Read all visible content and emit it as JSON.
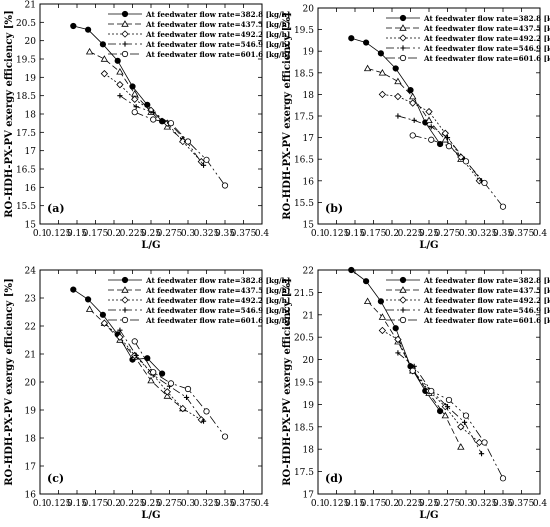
{
  "chart_data": [
    {
      "type": "line",
      "panel_label": "(a)",
      "xlabel": "L/G",
      "ylabel": "RO-HDH-PX-PV exergy efficiency [%]",
      "xlim": [
        0.1,
        0.4
      ],
      "ylim": [
        15,
        21
      ],
      "xticks": [
        "0.1",
        "0.125",
        "0.15",
        "0.175",
        "0.2",
        "0.225",
        "0.25",
        "0.275",
        "0.3",
        "0.325",
        "0.35",
        "0.375",
        "0.4"
      ],
      "yticks": [
        "15",
        "15.5",
        "16",
        "16.5",
        "17",
        "17.5",
        "18",
        "18.5",
        "19",
        "19.5",
        "20",
        "20.5",
        "21"
      ],
      "legend_position": "top-right",
      "series": [
        {
          "name": "At feedwater flow rate=382.8 [kg/h]",
          "marker": "filled-circle",
          "dash": "solid",
          "x": [
            0.145,
            0.165,
            0.185,
            0.205,
            0.225,
            0.245,
            0.265
          ],
          "y": [
            20.4,
            20.3,
            19.9,
            19.45,
            18.75,
            18.25,
            17.8
          ]
        },
        {
          "name": "At feedwater flow rate=437.5 [kg/h]",
          "marker": "open-triangle",
          "dash": "6,3",
          "x": [
            0.167,
            0.187,
            0.208,
            0.228,
            0.25,
            0.272,
            0.293
          ],
          "y": [
            19.7,
            19.5,
            19.15,
            18.55,
            18.05,
            17.65,
            17.3
          ]
        },
        {
          "name": "At feedwater flow rate=492.2 [kg/h]",
          "marker": "open-diamond",
          "dash": "2,2",
          "x": [
            0.187,
            0.208,
            0.228,
            0.25,
            0.272,
            0.293,
            0.318
          ],
          "y": [
            19.1,
            18.8,
            18.4,
            18.1,
            17.75,
            17.25,
            16.7
          ]
        },
        {
          "name": "At feedwater flow rate=546.9 [kg/h]",
          "marker": "plus",
          "dash": "8,3,2,3",
          "x": [
            0.208,
            0.23,
            0.253,
            0.275,
            0.298,
            0.321
          ],
          "y": [
            18.5,
            18.2,
            18.05,
            17.75,
            17.25,
            16.6
          ]
        },
        {
          "name": "At feedwater flow rate=601.6 [kg/h]",
          "marker": "open-circle",
          "dash": "9,3,2,3,2,3",
          "x": [
            0.228,
            0.253,
            0.277,
            0.3,
            0.325,
            0.35
          ],
          "y": [
            18.05,
            17.85,
            17.75,
            17.25,
            16.75,
            16.05
          ]
        }
      ]
    },
    {
      "type": "line",
      "panel_label": "(b)",
      "xlabel": "L/G",
      "ylabel": "RO-HDH-PX-PV exergy efficiency [%]",
      "xlim": [
        0.1,
        0.4
      ],
      "ylim": [
        15,
        20
      ],
      "xticks": [
        "0.1",
        "0.125",
        "0.15",
        "0.175",
        "0.2",
        "0.225",
        "0.25",
        "0.275",
        "0.3",
        "0.325",
        "0.35",
        "0.375",
        "0.4"
      ],
      "yticks": [
        "15",
        "15.5",
        "16",
        "16.5",
        "17",
        "17.5",
        "18",
        "18.5",
        "19",
        "19.5",
        "20"
      ],
      "legend_position": "top-right",
      "series": [
        {
          "name": "At feedwater flow rate=382.8 [kg/h]",
          "marker": "filled-circle",
          "dash": "solid",
          "x": [
            0.145,
            0.165,
            0.185,
            0.205,
            0.225,
            0.245,
            0.265
          ],
          "y": [
            19.3,
            19.2,
            18.95,
            18.6,
            18.1,
            17.35,
            16.85
          ]
        },
        {
          "name": "At feedwater flow rate=437.5 [kg/h]",
          "marker": "open-triangle",
          "dash": "6,3",
          "x": [
            0.167,
            0.187,
            0.208,
            0.228,
            0.25,
            0.272,
            0.293
          ],
          "y": [
            18.6,
            18.5,
            18.3,
            17.95,
            17.4,
            16.95,
            16.5
          ]
        },
        {
          "name": "At feedwater flow rate=492.2 [kg/h]",
          "marker": "open-diamond",
          "dash": "2,2",
          "x": [
            0.187,
            0.208,
            0.228,
            0.25,
            0.272,
            0.293,
            0.318
          ],
          "y": [
            18.0,
            17.95,
            17.8,
            17.6,
            17.1,
            16.55,
            16.0
          ]
        },
        {
          "name": "At feedwater flow rate=546.9 [kg/h]",
          "marker": "plus",
          "dash": "8,3,2,3",
          "x": [
            0.208,
            0.23,
            0.253,
            0.275,
            0.298,
            0.321
          ],
          "y": [
            17.5,
            17.4,
            17.25,
            17.0,
            16.5,
            16.0
          ]
        },
        {
          "name": "At feedwater flow rate=601.6 [kg/h]",
          "marker": "open-circle",
          "dash": "9,3,2,3,2,3",
          "x": [
            0.228,
            0.253,
            0.277,
            0.3,
            0.325,
            0.35
          ],
          "y": [
            17.05,
            16.95,
            16.8,
            16.45,
            15.95,
            15.4
          ]
        }
      ]
    },
    {
      "type": "line",
      "panel_label": "(c)",
      "xlabel": "L/G",
      "ylabel": "RO-HDH-PX-PV exergy efficiency [%]",
      "xlim": [
        0.1,
        0.4
      ],
      "ylim": [
        16,
        24
      ],
      "xticks": [
        "0.1",
        "0.125",
        "0.15",
        "0.175",
        "0.2",
        "0.225",
        "0.25",
        "0.275",
        "0.3",
        "0.325",
        "0.35",
        "0.375",
        "0.4"
      ],
      "yticks": [
        "16",
        "17",
        "18",
        "19",
        "20",
        "21",
        "22",
        "23",
        "24"
      ],
      "legend_position": "top-right",
      "series": [
        {
          "name": "At feedwater flow rate=382.8 [kg/h]",
          "marker": "filled-circle",
          "dash": "solid",
          "x": [
            0.145,
            0.165,
            0.185,
            0.205,
            0.225,
            0.245,
            0.265
          ],
          "y": [
            23.3,
            22.95,
            22.4,
            21.7,
            20.8,
            20.85,
            20.3
          ]
        },
        {
          "name": "At feedwater flow rate=437.5 [kg/h]",
          "marker": "open-triangle",
          "dash": "6,3",
          "x": [
            0.167,
            0.187,
            0.208,
            0.228,
            0.25,
            0.272,
            0.293
          ],
          "y": [
            22.6,
            22.1,
            21.5,
            20.9,
            20.05,
            19.5,
            19.05
          ]
        },
        {
          "name": "At feedwater flow rate=492.2 [kg/h]",
          "marker": "open-diamond",
          "dash": "2,2",
          "x": [
            0.187,
            0.208,
            0.228,
            0.25,
            0.272,
            0.293,
            0.318
          ],
          "y": [
            22.1,
            21.6,
            20.95,
            20.35,
            19.65,
            19.05,
            18.65
          ]
        },
        {
          "name": "At feedwater flow rate=546.9 [kg/h]",
          "marker": "plus",
          "dash": "8,3,2,3",
          "x": [
            0.208,
            0.23,
            0.253,
            0.275,
            0.298,
            0.321
          ],
          "y": [
            21.85,
            20.95,
            20.25,
            19.85,
            19.45,
            18.6
          ]
        },
        {
          "name": "At feedwater flow rate=601.6 [kg/h]",
          "marker": "open-circle",
          "dash": "9,3,2,3,2,3",
          "x": [
            0.228,
            0.253,
            0.277,
            0.3,
            0.325,
            0.35
          ],
          "y": [
            21.45,
            20.35,
            19.95,
            19.75,
            18.95,
            18.05
          ]
        }
      ]
    },
    {
      "type": "line",
      "panel_label": "(d)",
      "xlabel": "L/G",
      "ylabel": "RO-HDH-PX-PV exergy efficiency [%]",
      "xlim": [
        0.1,
        0.4
      ],
      "ylim": [
        17,
        22
      ],
      "xticks": [
        "0.1",
        "0.125",
        "0.15",
        "0.175",
        "0.2",
        "0.225",
        "0.25",
        "0.275",
        "0.3",
        "0.325",
        "0.35",
        "0.375",
        "0.4"
      ],
      "yticks": [
        "17",
        "17.5",
        "18",
        "18.5",
        "19",
        "19.5",
        "20",
        "20.5",
        "21",
        "21.5",
        "22"
      ],
      "legend_position": "top-right",
      "series": [
        {
          "name": "At feedwater flow rate=382.8 [kg/h]",
          "marker": "filled-circle",
          "dash": "solid",
          "x": [
            0.145,
            0.165,
            0.185,
            0.205,
            0.225,
            0.245,
            0.265
          ],
          "y": [
            22.0,
            21.75,
            21.3,
            20.7,
            19.85,
            19.3,
            18.85
          ]
        },
        {
          "name": "At feedwater flow rate=437.5 [kg/h]",
          "marker": "open-triangle",
          "dash": "6,3",
          "x": [
            0.167,
            0.187,
            0.208,
            0.228,
            0.25,
            0.272,
            0.293
          ],
          "y": [
            21.3,
            20.95,
            20.4,
            19.75,
            19.25,
            18.75,
            18.05
          ]
        },
        {
          "name": "At feedwater flow rate=492.2 [kg/h]",
          "marker": "open-diamond",
          "dash": "2,2",
          "x": [
            0.187,
            0.208,
            0.228,
            0.25,
            0.272,
            0.293,
            0.318
          ],
          "y": [
            20.65,
            20.45,
            19.75,
            19.3,
            18.95,
            18.5,
            18.15
          ]
        },
        {
          "name": "At feedwater flow rate=546.9 [kg/h]",
          "marker": "plus",
          "dash": "8,3,2,3",
          "x": [
            0.208,
            0.23,
            0.253,
            0.275,
            0.298,
            0.321
          ],
          "y": [
            20.15,
            19.85,
            19.3,
            18.95,
            18.6,
            17.9
          ]
        },
        {
          "name": "At feedwater flow rate=601.6 [kg/h]",
          "marker": "open-circle",
          "dash": "9,3,2,3,2,3",
          "x": [
            0.228,
            0.253,
            0.277,
            0.3,
            0.325,
            0.35
          ],
          "y": [
            19.75,
            19.3,
            19.1,
            18.75,
            18.15,
            17.35
          ]
        }
      ]
    }
  ]
}
